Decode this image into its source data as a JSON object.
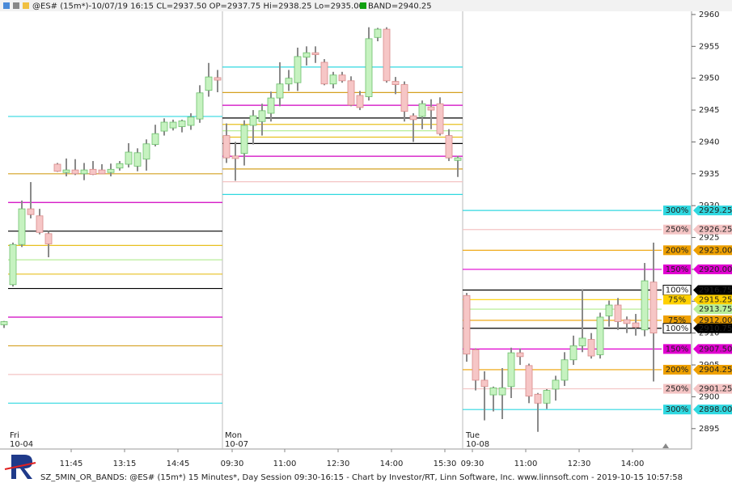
{
  "header": {
    "title": "@ES# (15m*)-10/07/19 16:15 CL=2937.50 OP=2937.75 Hi=2938.25 Lo=2935.00",
    "legend": "BAND=2940.25",
    "legend_color": "#10a010"
  },
  "footer": "SZ_5MIN_OR_BANDS: @ES# (15m*) 15 Minutes*, Day Session 09:30-16:15 - Chart by Investor/RT, Linn Software, Inc. www.linnsoft.com - 2019-10-15 10:57:58",
  "chart_data": {
    "type": "candlestick",
    "ylim": [
      2891.8,
      2960.5
    ],
    "yticks": [
      2895,
      2900,
      2905,
      2910,
      2915,
      2920,
      2925,
      2930,
      2935,
      2940,
      2945,
      2950,
      2955,
      2960
    ],
    "colors": {
      "up": "#c6f2c0",
      "up_edge": "#6cbf6c",
      "down": "#f6c6c6",
      "down_edge": "#d88a8a",
      "wick": "#8a8a8a"
    },
    "times": [
      "11:45",
      "13:15",
      "14:45",
      "09:30",
      "11:00",
      "12:30",
      "14:00",
      "15:30",
      "09:30",
      "11:00",
      "12:30",
      "14:00"
    ],
    "sessions": [
      {
        "day": "Fri",
        "date": "10-04",
        "levels": [
          {
            "value": 2944,
            "color": "#30d8e0"
          },
          {
            "value": 2935,
            "color": "#d4a020"
          },
          {
            "value": 2930.5,
            "color": "#d000c0"
          },
          {
            "value": 2926,
            "color": "#000000"
          },
          {
            "value": 2923.75,
            "color": "#e8c020"
          },
          {
            "value": 2921.5,
            "color": "#b8ee98"
          },
          {
            "value": 2919.25,
            "color": "#e8c020"
          },
          {
            "value": 2917,
            "color": "#000000"
          },
          {
            "value": 2912.5,
            "color": "#d000c0"
          },
          {
            "value": 2908,
            "color": "#d4a020"
          },
          {
            "value": 2903.5,
            "color": "#f4c4c4"
          },
          {
            "value": 2899,
            "color": "#30d8e0"
          }
        ]
      },
      {
        "day": "Mon",
        "date": "10-07",
        "levels": [
          {
            "value": 2951.75,
            "color": "#30d8e0"
          },
          {
            "value": 2947.75,
            "color": "#d4a020"
          },
          {
            "value": 2945.75,
            "color": "#d000c0"
          },
          {
            "value": 2943.75,
            "color": "#000000"
          },
          {
            "value": 2942.75,
            "color": "#e8c020"
          },
          {
            "value": 2941.75,
            "color": "#b8ee98"
          },
          {
            "value": 2940.75,
            "color": "#e8c020"
          },
          {
            "value": 2939.75,
            "color": "#000000"
          },
          {
            "value": 2937.75,
            "color": "#d000c0"
          },
          {
            "value": 2935.75,
            "color": "#d4a020"
          },
          {
            "value": 2933.75,
            "color": "#f4c4c4"
          },
          {
            "value": 2931.75,
            "color": "#30d8e0"
          }
        ]
      },
      {
        "day": "Tue",
        "date": "10-08",
        "levels": [
          {
            "value": 2929.25,
            "pct": "300%",
            "color": "#30d8e0"
          },
          {
            "value": 2926.25,
            "pct": "250%",
            "color": "#f4c4c4"
          },
          {
            "value": 2923,
            "label": "2923.00",
            "pct": "200%",
            "color": "#eea000"
          },
          {
            "value": 2920,
            "label": "2920.00",
            "pct": "150%",
            "color": "#e000d0"
          },
          {
            "value": 2916.75,
            "pct": "100%",
            "color": "#000000"
          },
          {
            "value": 2915.25,
            "pct": "75%",
            "color": "#ffd000"
          },
          {
            "value": 2913.75,
            "color": "#b8ee98"
          },
          {
            "value": 2912,
            "label": "2912.00",
            "pct": "75%",
            "color": "#eea000"
          },
          {
            "value": 2910.75,
            "pct": "100%",
            "color": "#000000"
          },
          {
            "value": 2907.5,
            "label": "2907.50",
            "pct": "150%",
            "color": "#e000d0"
          },
          {
            "value": 2904.25,
            "pct": "200%",
            "color": "#eea000"
          },
          {
            "value": 2901.25,
            "pct": "250%",
            "color": "#f4c4c4"
          },
          {
            "value": 2898,
            "label": "2898.00",
            "pct": "300%",
            "color": "#30d8e0"
          }
        ]
      }
    ],
    "ohlc": [
      [
        2911.3,
        2911.9,
        2910.8,
        2911.8
      ],
      [
        2917.6,
        2924.2,
        2917.3,
        2923.9
      ],
      [
        2923.9,
        2930.8,
        2923.5,
        2929.5
      ],
      [
        2929.5,
        2933.7,
        2928,
        2928.6
      ],
      [
        2928.4,
        2929.5,
        2925.5,
        2925.8
      ],
      [
        2925.6,
        2926,
        2921.9,
        2924
      ],
      [
        2936.5,
        2936.7,
        2935.3,
        2935.4
      ],
      [
        2935.2,
        2937.4,
        2934.6,
        2935.6
      ],
      [
        2935.6,
        2937.3,
        2934.8,
        2935
      ],
      [
        2935,
        2936.7,
        2934,
        2935.6
      ],
      [
        2935.7,
        2937,
        2934.8,
        2934.9
      ],
      [
        2935.6,
        2936.5,
        2935,
        2935
      ],
      [
        2935.2,
        2936.6,
        2934.6,
        2935.7
      ],
      [
        2935.9,
        2937,
        2935.5,
        2936.6
      ],
      [
        2936.5,
        2939.8,
        2936,
        2938.4
      ],
      [
        2936.2,
        2939,
        2935.4,
        2938.3
      ],
      [
        2937.3,
        2940.4,
        2935.5,
        2939.7
      ],
      [
        2939.6,
        2942.7,
        2939.3,
        2941.3
      ],
      [
        2941.7,
        2943.7,
        2941,
        2943.1
      ],
      [
        2942.2,
        2943.5,
        2941.8,
        2943.1
      ],
      [
        2942.4,
        2943.5,
        2941.5,
        2943.3
      ],
      [
        2942.6,
        2944.5,
        2941.9,
        2943.9
      ],
      [
        2943.6,
        2948.9,
        2943,
        2947.7
      ],
      [
        2948.1,
        2952.4,
        2947.1,
        2950.2
      ],
      [
        2950.1,
        2951.3,
        2947.8,
        2949.7
      ],
      [
        2941,
        2942.9,
        2936.7,
        2937.5
      ],
      [
        2937.8,
        2940,
        2933.9,
        2937.4
      ],
      [
        2938.2,
        2943.4,
        2936.3,
        2942.6
      ],
      [
        2942.6,
        2945,
        2939.6,
        2944.1
      ],
      [
        2943.2,
        2946,
        2941,
        2944.9
      ],
      [
        2944.5,
        2947.9,
        2943.2,
        2946.9
      ],
      [
        2946.9,
        2952.5,
        2945.6,
        2949.1
      ],
      [
        2949.1,
        2951.3,
        2948,
        2950
      ],
      [
        2949.3,
        2954.8,
        2948,
        2953.4
      ],
      [
        2953.3,
        2955,
        2952,
        2954
      ],
      [
        2954,
        2955,
        2952.4,
        2953.7
      ],
      [
        2952.5,
        2953,
        2948.9,
        2949.1
      ],
      [
        2949.1,
        2951,
        2948.4,
        2950.5
      ],
      [
        2950.5,
        2951,
        2949.3,
        2949.6
      ],
      [
        2949.6,
        2950.3,
        2945.6,
        2945.8
      ],
      [
        2947.3,
        2948,
        2945,
        2945.4
      ],
      [
        2947.1,
        2958,
        2946.5,
        2956.2
      ],
      [
        2956.4,
        2957.9,
        2955.8,
        2957.7
      ],
      [
        2957.7,
        2958,
        2949.3,
        2949.6
      ],
      [
        2949.5,
        2950.2,
        2947.5,
        2949
      ],
      [
        2949,
        2949.5,
        2943.2,
        2944.8
      ],
      [
        2944.1,
        2944.5,
        2940,
        2943.5
      ],
      [
        2944,
        2946.5,
        2942,
        2946
      ],
      [
        2945.5,
        2946.7,
        2942,
        2945
      ],
      [
        2946,
        2947,
        2941,
        2941.3
      ],
      [
        2941,
        2942,
        2937,
        2937.5
      ],
      [
        2937.1,
        2937.8,
        2934.5,
        2937.5
      ],
      [
        2915.9,
        2916.3,
        2905.5,
        2906.7
      ],
      [
        2907.4,
        2907.6,
        2901,
        2902.6
      ],
      [
        2902.6,
        2904,
        2896.3,
        2901.6
      ],
      [
        2900.3,
        2901.6,
        2897.7,
        2901.4
      ],
      [
        2900.3,
        2904.5,
        2896.5,
        2901.4
      ],
      [
        2901.6,
        2907.7,
        2899.8,
        2906.9
      ],
      [
        2906.9,
        2907.6,
        2905,
        2906.3
      ],
      [
        2904.9,
        2905.2,
        2899,
        2900.1
      ],
      [
        2900.4,
        2900.6,
        2894.5,
        2899
      ],
      [
        2899,
        2901.2,
        2898.1,
        2901
      ],
      [
        2901.2,
        2903.3,
        2899.4,
        2902.6
      ],
      [
        2902.6,
        2907,
        2901.7,
        2905.8
      ],
      [
        2905.8,
        2909.6,
        2905,
        2908
      ],
      [
        2908,
        2916.9,
        2907,
        2909.2
      ],
      [
        2909,
        2910,
        2906,
        2906.4
      ],
      [
        2906.6,
        2913.2,
        2906,
        2912.5
      ],
      [
        2912.7,
        2915.1,
        2911,
        2914.4
      ],
      [
        2914.4,
        2915.5,
        2910.5,
        2911.8
      ],
      [
        2912.1,
        2912.6,
        2910,
        2911.5
      ],
      [
        2911.6,
        2913,
        2909.6,
        2910.9
      ],
      [
        2910.5,
        2921,
        2909.5,
        2918.2
      ],
      [
        2918,
        2924.2,
        2902.4,
        2910
      ]
    ]
  }
}
